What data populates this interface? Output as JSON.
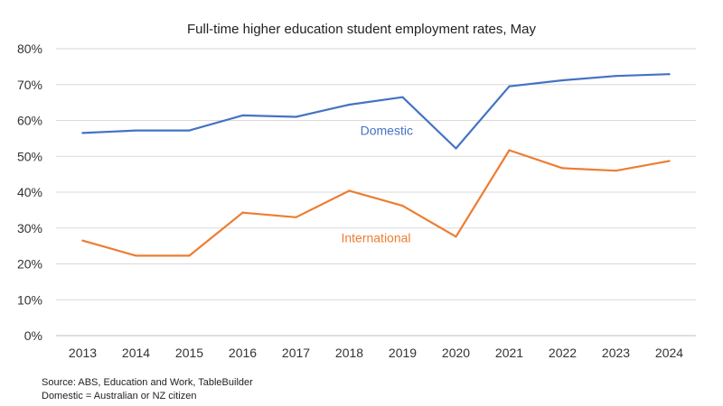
{
  "chart_data": {
    "type": "line",
    "title": "Full-time higher education student employment rates, May",
    "xlabel": "",
    "ylabel": "",
    "x": [
      "2013",
      "2014",
      "2015",
      "2016",
      "2017",
      "2018",
      "2019",
      "2020",
      "2021",
      "2022",
      "2023",
      "2024"
    ],
    "ylim": [
      0,
      80
    ],
    "yticks": [
      "0%",
      "10%",
      "20%",
      "30%",
      "40%",
      "50%",
      "60%",
      "70%",
      "80%"
    ],
    "grid": true,
    "series": [
      {
        "name": "Domestic",
        "color": "#4472C4",
        "values": [
          56.5,
          57.2,
          57.2,
          61.4,
          61.0,
          64.4,
          66.5,
          52.2,
          69.5,
          71.2,
          72.4,
          72.9
        ]
      },
      {
        "name": "International",
        "color": "#ED7D31",
        "values": [
          26.5,
          22.3,
          22.3,
          34.3,
          33.0,
          40.4,
          36.2,
          27.6,
          51.7,
          46.7,
          46.0,
          48.7
        ]
      }
    ]
  },
  "footnotes": [
    "Source: ABS, Education and Work, TableBuilder",
    "Domestic = Australian or NZ citizen"
  ]
}
